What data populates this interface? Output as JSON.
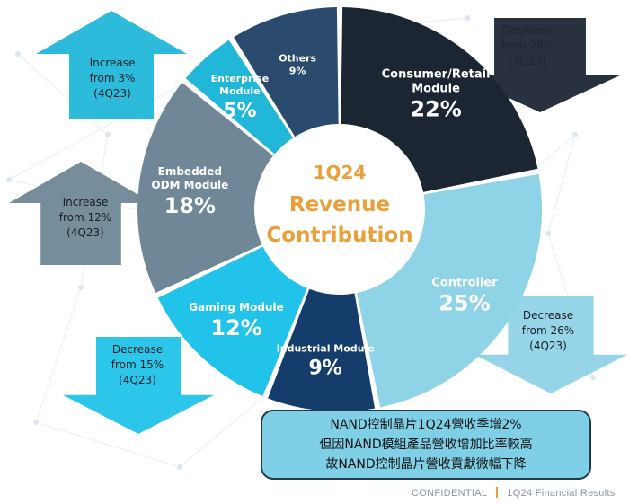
{
  "chart_data": {
    "type": "pie",
    "variant": "donut",
    "center_title": [
      "1Q24",
      "Revenue",
      "Contribution"
    ],
    "slices": [
      {
        "name": "Consumer/Retail Module",
        "label_lines": [
          "Consumer/Retail",
          "Module"
        ],
        "value": 22,
        "value_label": "22%",
        "color": "#1c2633"
      },
      {
        "name": "Controller",
        "label_lines": [
          "Controller"
        ],
        "value": 25,
        "value_label": "25%",
        "color": "#8fd3e6"
      },
      {
        "name": "Industrial Module",
        "label_lines": [
          "Industrial Module"
        ],
        "value": 9,
        "value_label": "9%",
        "color": "#143d6b"
      },
      {
        "name": "Gaming Module",
        "label_lines": [
          "Gaming Module"
        ],
        "value": 12,
        "value_label": "12%",
        "color": "#22c3ea"
      },
      {
        "name": "Embedded ODM Module",
        "label_lines": [
          "Embedded",
          "ODM Module"
        ],
        "value": 18,
        "value_label": "18%",
        "color": "#6f8797"
      },
      {
        "name": "Enterprise Module",
        "label_lines": [
          "Enterprise",
          "Module"
        ],
        "value": 5,
        "value_label": "5%",
        "color": "#21b7d8"
      },
      {
        "name": "Others",
        "label_lines": [
          "Others",
          "9%"
        ],
        "value": 9,
        "value_label": "",
        "color": "#2a4a6e"
      }
    ],
    "annotations": [
      {
        "segment": "Enterprise Module",
        "direction": "up",
        "lines": [
          "Increase",
          "from 3%",
          "(4Q23)"
        ],
        "color": "#21b7d8"
      },
      {
        "segment": "Consumer/Retail Module",
        "direction": "down",
        "lines": [
          "Decrease",
          "from 28%",
          "(4Q23)"
        ],
        "color": "#1c2633"
      },
      {
        "segment": "Embedded ODM Module",
        "direction": "up",
        "lines": [
          "Increase",
          "from 12%",
          "(4Q23)"
        ],
        "color": "#6f8797"
      },
      {
        "segment": "Controller",
        "direction": "down",
        "lines": [
          "Decrease",
          "from 26%",
          "(4Q23)"
        ],
        "color": "#8fd3e6"
      },
      {
        "segment": "Gaming Module",
        "direction": "down",
        "lines": [
          "Decrease",
          "from 15%",
          "(4Q23)"
        ],
        "color": "#22c3ea"
      }
    ]
  },
  "callout": {
    "lines": [
      "NAND控制晶片1Q24營收季增2%",
      "但因NAND模組產品營收增加比率較高",
      "故NAND控制晶片營收貢獻微幅下降"
    ],
    "bg_color": "#7fcfe6"
  },
  "footer": {
    "left": "CONFIDENTIAL",
    "right": "1Q24 Financial Results"
  },
  "colors": {
    "accent_orange": "#e8a13a",
    "center_fill": "#ffffff"
  }
}
